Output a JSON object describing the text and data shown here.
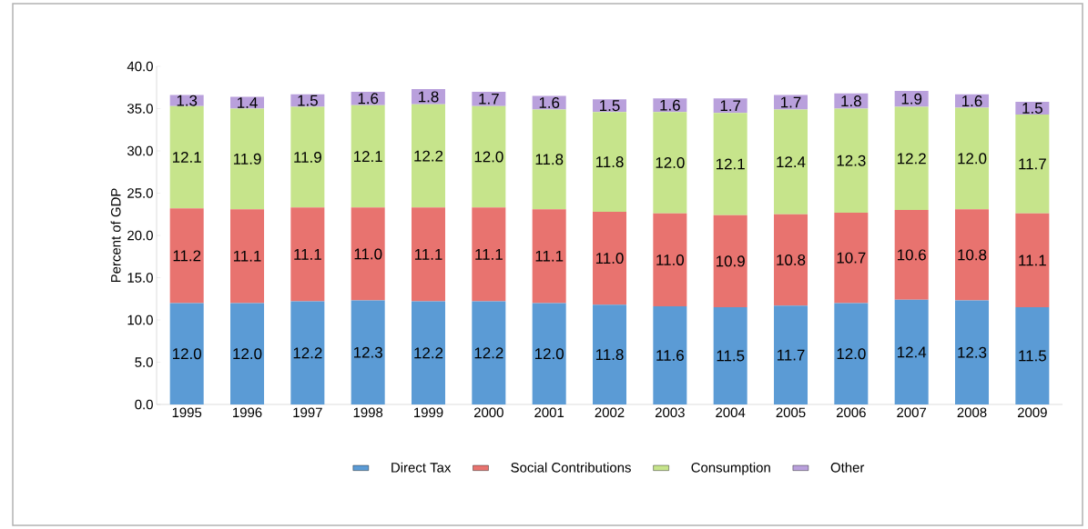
{
  "chart_data": {
    "type": "bar",
    "stacked": true,
    "ylabel": "Percent of GDP",
    "categories": [
      "1995",
      "1996",
      "1997",
      "1998",
      "1999",
      "2000",
      "2001",
      "2002",
      "2003",
      "2004",
      "2005",
      "2006",
      "2007",
      "2008",
      "2009"
    ],
    "ylim": [
      0,
      40
    ],
    "yticks": [
      {
        "value": 0,
        "label": "0.0"
      },
      {
        "value": 5,
        "label": "5.0"
      },
      {
        "value": 10,
        "label": "10.0"
      },
      {
        "value": 15,
        "label": "15.0"
      },
      {
        "value": 20,
        "label": "20.0"
      },
      {
        "value": 25,
        "label": "25.0"
      },
      {
        "value": 30,
        "label": "30.0"
      },
      {
        "value": 35,
        "label": "35.0"
      },
      {
        "value": 40,
        "label": "40.0"
      }
    ],
    "grid": false,
    "legend": "bottom",
    "series": [
      {
        "name": "Direct Tax",
        "color": "#5b9bd5",
        "values": [
          12.0,
          12.0,
          12.2,
          12.3,
          12.2,
          12.2,
          12.0,
          11.8,
          11.6,
          11.5,
          11.7,
          12.0,
          12.4,
          12.3,
          11.5
        ],
        "value_labels": [
          "12.0",
          "12.0",
          "12.2",
          "12.3",
          "12.2",
          "12.2",
          "12.0",
          "11.8",
          "11.6",
          "11.5",
          "11.7",
          "12.0",
          "12.4",
          "12.3",
          "11.5"
        ]
      },
      {
        "name": "Social Contributions",
        "color": "#e8736f",
        "values": [
          11.2,
          11.1,
          11.1,
          11.0,
          11.1,
          11.1,
          11.1,
          11.0,
          11.0,
          10.9,
          10.8,
          10.7,
          10.6,
          10.8,
          11.1
        ],
        "value_labels": [
          "11.2",
          "11.1",
          "11.1",
          "11.0",
          "11.1",
          "11.1",
          "11.1",
          "11.0",
          "11.0",
          "10.9",
          "10.8",
          "10.7",
          "10.6",
          "10.8",
          "11.1"
        ]
      },
      {
        "name": "Consumption",
        "color": "#c6e48b",
        "values": [
          12.1,
          11.9,
          11.9,
          12.1,
          12.2,
          12.0,
          11.8,
          11.8,
          12.0,
          12.1,
          12.4,
          12.3,
          12.2,
          12.0,
          11.7
        ],
        "value_labels": [
          "12.1",
          "11.9",
          "11.9",
          "12.1",
          "12.2",
          "12.0",
          "11.8",
          "11.8",
          "12.0",
          "12.1",
          "12.4",
          "12.3",
          "12.2",
          "12.0",
          "11.7"
        ]
      },
      {
        "name": "Other",
        "color": "#b9a0dc",
        "values": [
          1.3,
          1.4,
          1.5,
          1.6,
          1.8,
          1.7,
          1.6,
          1.5,
          1.6,
          1.7,
          1.7,
          1.8,
          1.9,
          1.6,
          1.5
        ],
        "value_labels": [
          "1.3",
          "1.4",
          "1.5",
          "1.6",
          "1.8",
          "1.7",
          "1.6",
          "1.5",
          "1.6",
          "1.7",
          "1.7",
          "1.8",
          "1.9",
          "1.6",
          "1.5"
        ]
      }
    ]
  }
}
